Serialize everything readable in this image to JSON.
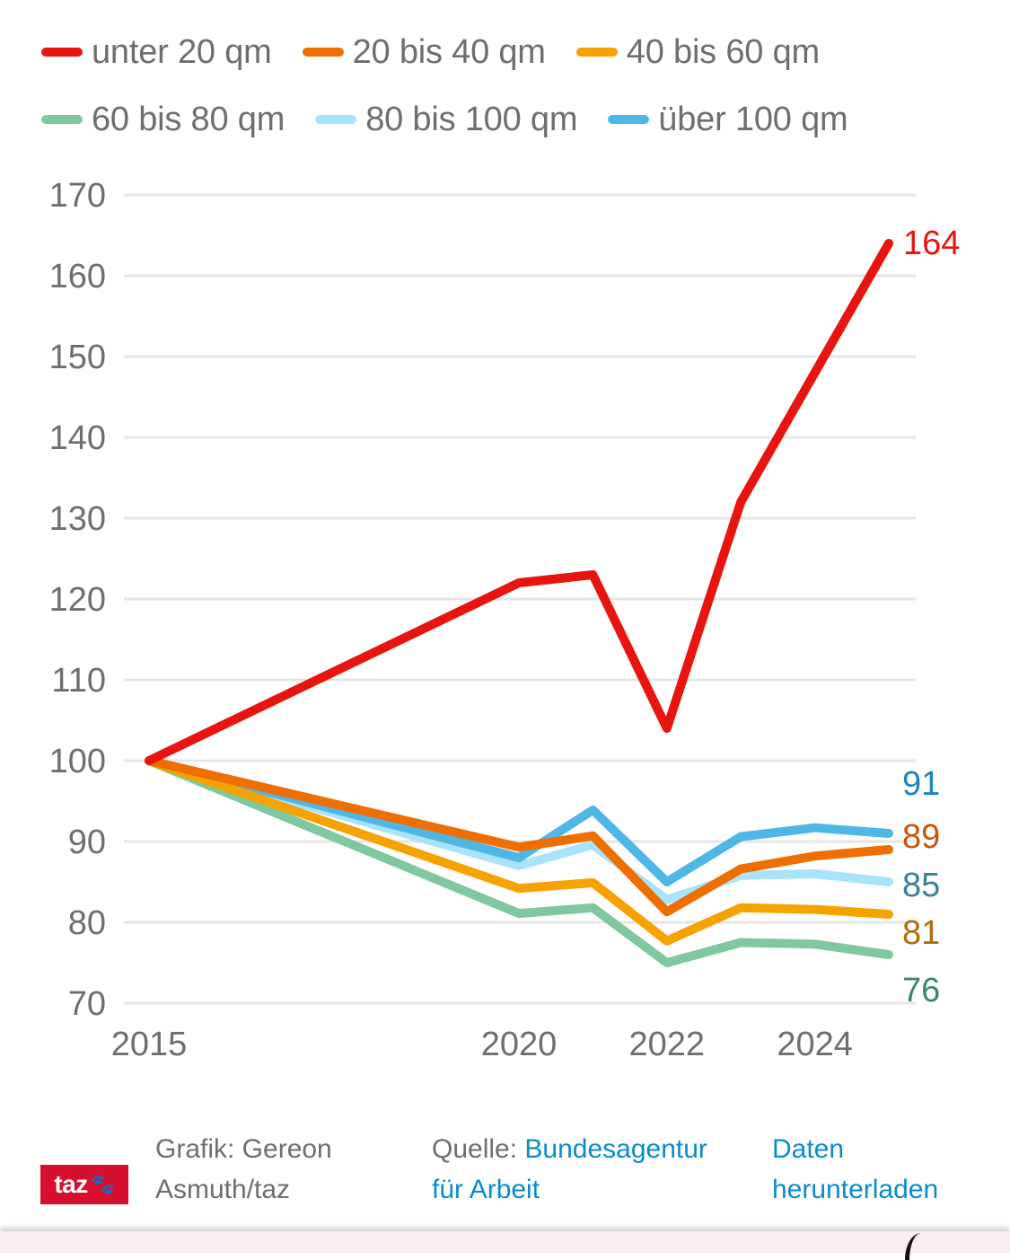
{
  "chart_data": {
    "type": "line",
    "title": "",
    "xlabel": "",
    "ylabel": "",
    "x": [
      2015,
      2020,
      2021,
      2022,
      2023,
      2024,
      2025
    ],
    "x_ticks": [
      2015,
      2020,
      2022,
      2024
    ],
    "x_tick_labels": [
      "2015",
      "2020",
      "2022",
      "2024"
    ],
    "xlim": [
      2015,
      2025
    ],
    "ylim": [
      70,
      170
    ],
    "y_ticks": [
      70,
      80,
      90,
      100,
      110,
      120,
      130,
      140,
      150,
      160,
      170
    ],
    "y_tick_labels": [
      "70",
      "80",
      "90",
      "100",
      "110",
      "120",
      "130",
      "140",
      "150",
      "160",
      "170"
    ],
    "grid": true,
    "legend_position": "top",
    "series": [
      {
        "name": "unter 20 qm",
        "color": "#e8140f",
        "label_color": "#e8140f",
        "end_label": "164",
        "values": [
          100,
          122,
          123,
          104,
          132,
          148,
          164
        ]
      },
      {
        "name": "20 bis 40 qm",
        "color": "#ee6f00",
        "label_color": "#c9540c",
        "end_label": "89",
        "values": [
          100,
          89.3,
          90.7,
          81.3,
          86.6,
          88.2,
          89
        ]
      },
      {
        "name": "40 bis 60 qm",
        "color": "#f6a200",
        "label_color": "#b06c0c",
        "end_label": "81",
        "values": [
          100,
          84.2,
          84.9,
          77.7,
          81.8,
          81.6,
          81
        ]
      },
      {
        "name": "60 bis 80 qm",
        "color": "#7fc8a0",
        "label_color": "#3d8566",
        "end_label": "76",
        "values": [
          100,
          81.1,
          81.8,
          75.0,
          77.5,
          77.3,
          76
        ]
      },
      {
        "name": "80 bis 100 qm",
        "color": "#a8e4fb",
        "label_color": "#3a7f9e",
        "end_label": "85",
        "values": [
          100,
          87.0,
          89.6,
          82.8,
          85.8,
          86.0,
          85
        ]
      },
      {
        "name": "über 100 qm",
        "color": "#4fb7e5",
        "label_color": "#1a86b8",
        "end_label": "91",
        "values": [
          100,
          88.0,
          93.9,
          85.0,
          90.6,
          91.7,
          91
        ]
      }
    ],
    "draw_order": [
      4,
      5,
      3,
      2,
      1,
      0
    ]
  },
  "footer": {
    "logo_text": "taz",
    "logo_icon": "paw-icon",
    "credit_line1": "Grafik: Gereon",
    "credit_line2": "Asmuth/taz",
    "source_prefix": "Quelle: ",
    "source_link_line1": "Bundesagentur",
    "source_link_line2": "für Arbeit",
    "download_line1": "Daten",
    "download_line2": "herunterladen"
  }
}
